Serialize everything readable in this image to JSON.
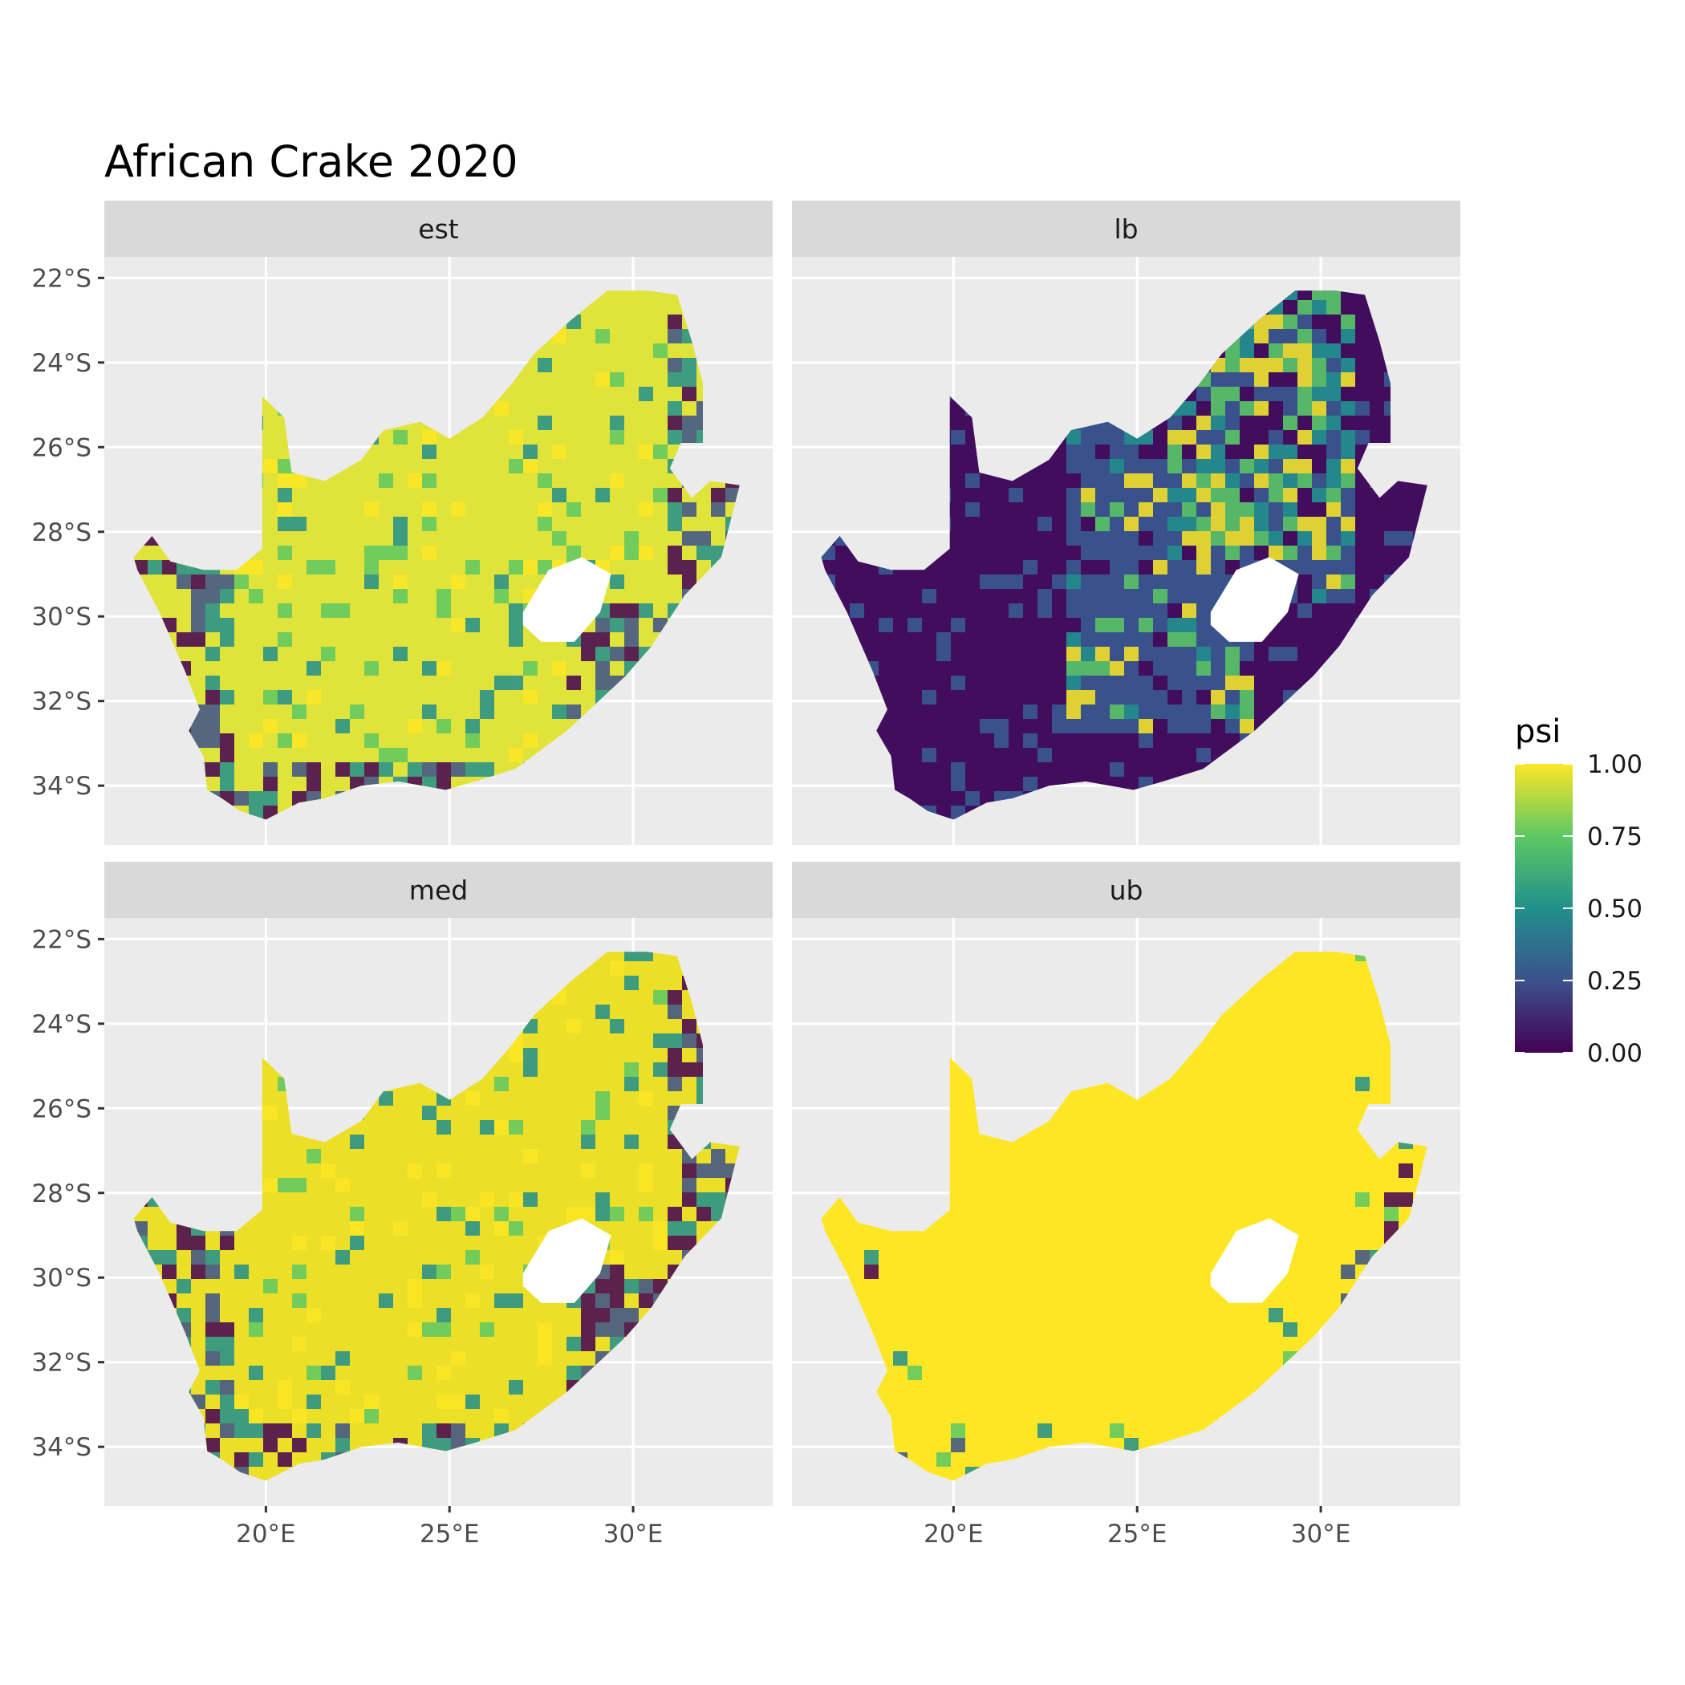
{
  "title": "African Crake 2020",
  "panels": [
    {
      "id": "est",
      "label": "est"
    },
    {
      "id": "lb",
      "label": "lb"
    },
    {
      "id": "med",
      "label": "med"
    },
    {
      "id": "ub",
      "label": "ub"
    }
  ],
  "chart_data": {
    "type": "heatmap",
    "title": "African Crake 2020",
    "x_ticks": [
      "20°E",
      "25°E",
      "30°E"
    ],
    "x_tick_values": [
      20,
      25,
      30
    ],
    "y_ticks": [
      "22°S",
      "24°S",
      "26°S",
      "28°S",
      "30°S",
      "32°S",
      "34°S"
    ],
    "y_tick_values": [
      -22,
      -24,
      -26,
      -28,
      -30,
      -32,
      -34
    ],
    "xlim": [
      15.6,
      33.8
    ],
    "ylim": [
      -35.4,
      -21.5
    ],
    "grid": true,
    "legend": {
      "title": "psi",
      "position": "right",
      "labels": [
        "1.00",
        "0.75",
        "0.50",
        "0.25",
        "0.00"
      ],
      "values": [
        1.0,
        0.75,
        0.5,
        0.25,
        0.0
      ]
    },
    "colors": {
      "viridis_0": "#440154",
      "viridis_25": "#3b528b",
      "viridis_50": "#21908c",
      "viridis_75": "#5dc863",
      "viridis_100": "#fde725",
      "panel_bg": "#ebebeb",
      "strip_bg": "#d9d9d9",
      "grid": "#ffffff"
    }
  }
}
